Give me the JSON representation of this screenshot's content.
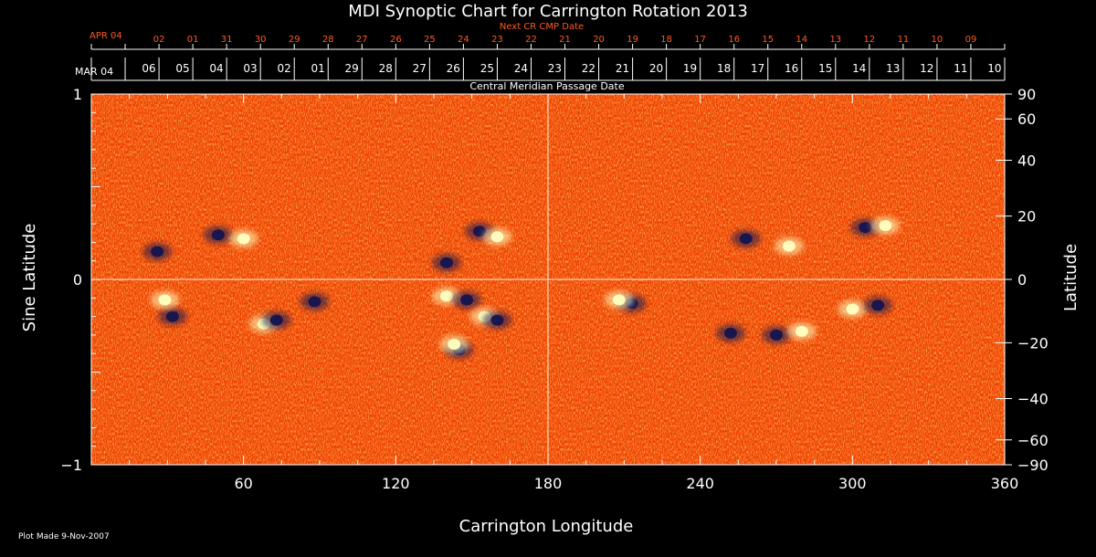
{
  "chart_data": {
    "type": "heatmap",
    "title": "MDI Synoptic Chart for Carrington Rotation 2013",
    "xlabel": "Carrington Longitude",
    "ylabel_left": "Sine Latitude",
    "ylabel_right": "Latitude",
    "xlim": [
      0,
      360
    ],
    "ylim": [
      -1,
      1
    ],
    "x_ticks": [
      60,
      120,
      180,
      240,
      300,
      360
    ],
    "y_ticks_left": [
      {
        "value": 1,
        "label": "1"
      },
      {
        "value": 0,
        "label": "0"
      },
      {
        "value": -1,
        "label": "−1"
      }
    ],
    "y_ticks_right": [
      {
        "value": 90,
        "label": "90"
      },
      {
        "value": 60,
        "label": "60"
      },
      {
        "value": 40,
        "label": "40"
      },
      {
        "value": 20,
        "label": "20"
      },
      {
        "value": 0,
        "label": "0"
      },
      {
        "value": -20,
        "label": "−20"
      },
      {
        "value": -40,
        "label": "−40"
      },
      {
        "value": -60,
        "label": "−60"
      },
      {
        "value": -90,
        "label": "−90"
      }
    ],
    "cmp_axis": {
      "label": "Central Meridian Passage Date",
      "start_label": "MAR 04",
      "dates": [
        "06",
        "05",
        "04",
        "03",
        "02",
        "01",
        "29",
        "28",
        "27",
        "26",
        "25",
        "24",
        "23",
        "22",
        "21",
        "20",
        "19",
        "18",
        "17",
        "16",
        "15",
        "14",
        "13",
        "12",
        "11",
        "10"
      ]
    },
    "next_cr_axis": {
      "label": "Next CR CMP Date",
      "start_label": "APR 04",
      "dates": [
        "02",
        "01",
        "31",
        "30",
        "29",
        "28",
        "27",
        "26",
        "25",
        "24",
        "23",
        "22",
        "21",
        "20",
        "19",
        "18",
        "17",
        "16",
        "15",
        "14",
        "13",
        "12",
        "11",
        "10",
        "09"
      ]
    },
    "guides": {
      "vertical_longitude": 180,
      "horizontal_sine_latitude": 0
    },
    "colors": {
      "background": "#ff4a00",
      "positive_polarity": "#ffffc0",
      "negative_polarity": "#141450",
      "next_cr_text": "#ff5a1f",
      "axes": "#ffffff"
    },
    "active_regions": [
      {
        "lon": 50,
        "sinlat": 0.24,
        "polarity": "negative"
      },
      {
        "lon": 60,
        "sinlat": 0.22,
        "polarity": "positive"
      },
      {
        "lon": 26,
        "sinlat": 0.15,
        "polarity": "negative"
      },
      {
        "lon": 32,
        "sinlat": -0.2,
        "polarity": "negative"
      },
      {
        "lon": 29,
        "sinlat": -0.11,
        "polarity": "positive"
      },
      {
        "lon": 68,
        "sinlat": -0.24,
        "polarity": "positive"
      },
      {
        "lon": 73,
        "sinlat": -0.22,
        "polarity": "negative"
      },
      {
        "lon": 88,
        "sinlat": -0.12,
        "polarity": "negative"
      },
      {
        "lon": 140,
        "sinlat": 0.09,
        "polarity": "negative"
      },
      {
        "lon": 140,
        "sinlat": -0.09,
        "polarity": "positive"
      },
      {
        "lon": 148,
        "sinlat": -0.11,
        "polarity": "negative"
      },
      {
        "lon": 153,
        "sinlat": 0.26,
        "polarity": "negative"
      },
      {
        "lon": 160,
        "sinlat": 0.23,
        "polarity": "positive"
      },
      {
        "lon": 155,
        "sinlat": -0.2,
        "polarity": "positive"
      },
      {
        "lon": 160,
        "sinlat": -0.22,
        "polarity": "negative"
      },
      {
        "lon": 145,
        "sinlat": -0.38,
        "polarity": "negative"
      },
      {
        "lon": 143,
        "sinlat": -0.35,
        "polarity": "positive"
      },
      {
        "lon": 213,
        "sinlat": -0.13,
        "polarity": "negative"
      },
      {
        "lon": 208,
        "sinlat": -0.11,
        "polarity": "positive"
      },
      {
        "lon": 252,
        "sinlat": -0.29,
        "polarity": "negative"
      },
      {
        "lon": 270,
        "sinlat": -0.3,
        "polarity": "negative"
      },
      {
        "lon": 280,
        "sinlat": -0.28,
        "polarity": "positive"
      },
      {
        "lon": 275,
        "sinlat": 0.18,
        "polarity": "positive"
      },
      {
        "lon": 258,
        "sinlat": 0.22,
        "polarity": "negative"
      },
      {
        "lon": 305,
        "sinlat": 0.28,
        "polarity": "negative"
      },
      {
        "lon": 313,
        "sinlat": 0.29,
        "polarity": "positive"
      },
      {
        "lon": 300,
        "sinlat": -0.16,
        "polarity": "positive"
      },
      {
        "lon": 310,
        "sinlat": -0.14,
        "polarity": "negative"
      }
    ]
  },
  "footer": {
    "plot_made": "Plot Made  9-Nov-2007"
  }
}
